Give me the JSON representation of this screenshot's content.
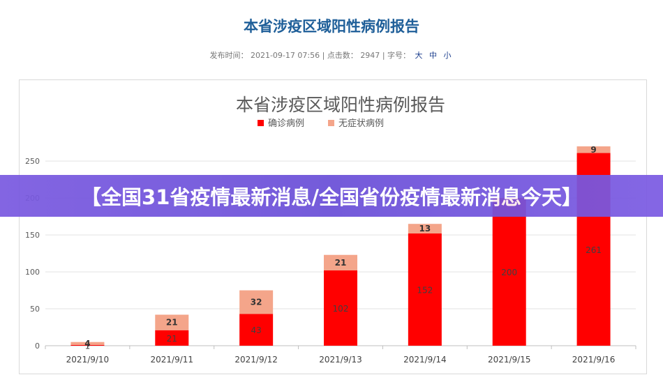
{
  "page": {
    "title": "本省涉疫区域阳性病例报告",
    "meta_prefix": "发布时间：",
    "meta_time": "2021-09-17 07:56",
    "meta_sep1": "|",
    "meta_clicks_label": "点击数：",
    "meta_clicks": "2947",
    "meta_sep2": "|",
    "meta_font_label": "字号：",
    "font_sizes": [
      "大",
      "中",
      "小"
    ]
  },
  "banner": {
    "text": "【全国31省疫情最新消息/全国省份疫情最新消息今天】",
    "color": "#6a4fd8"
  },
  "chart_data": {
    "type": "bar",
    "stacked": true,
    "title": "本省涉疫区域阳性病例报告",
    "categories": [
      "2021/9/10",
      "2021/9/11",
      "2021/9/12",
      "2021/9/13",
      "2021/9/14",
      "2021/9/15",
      "2021/9/16"
    ],
    "series": [
      {
        "name": "确诊病例",
        "color": "#ff0000",
        "values": [
          1,
          21,
          43,
          102,
          152,
          200,
          261
        ],
        "labels": [
          "1",
          "21",
          "43",
          "102",
          "152",
          "200",
          "261"
        ]
      },
      {
        "name": "无症状病例",
        "color": "#f4a58a",
        "values": [
          4,
          21,
          32,
          21,
          13,
          0,
          9
        ],
        "labels": [
          "4",
          "21",
          "32",
          "21",
          "13",
          "",
          "9"
        ]
      }
    ],
    "yticks": [
      "0",
      "50",
      "100",
      "150",
      "200",
      "250"
    ],
    "ylim": [
      0,
      270
    ],
    "grid": true,
    "legend_position": "top-center"
  }
}
